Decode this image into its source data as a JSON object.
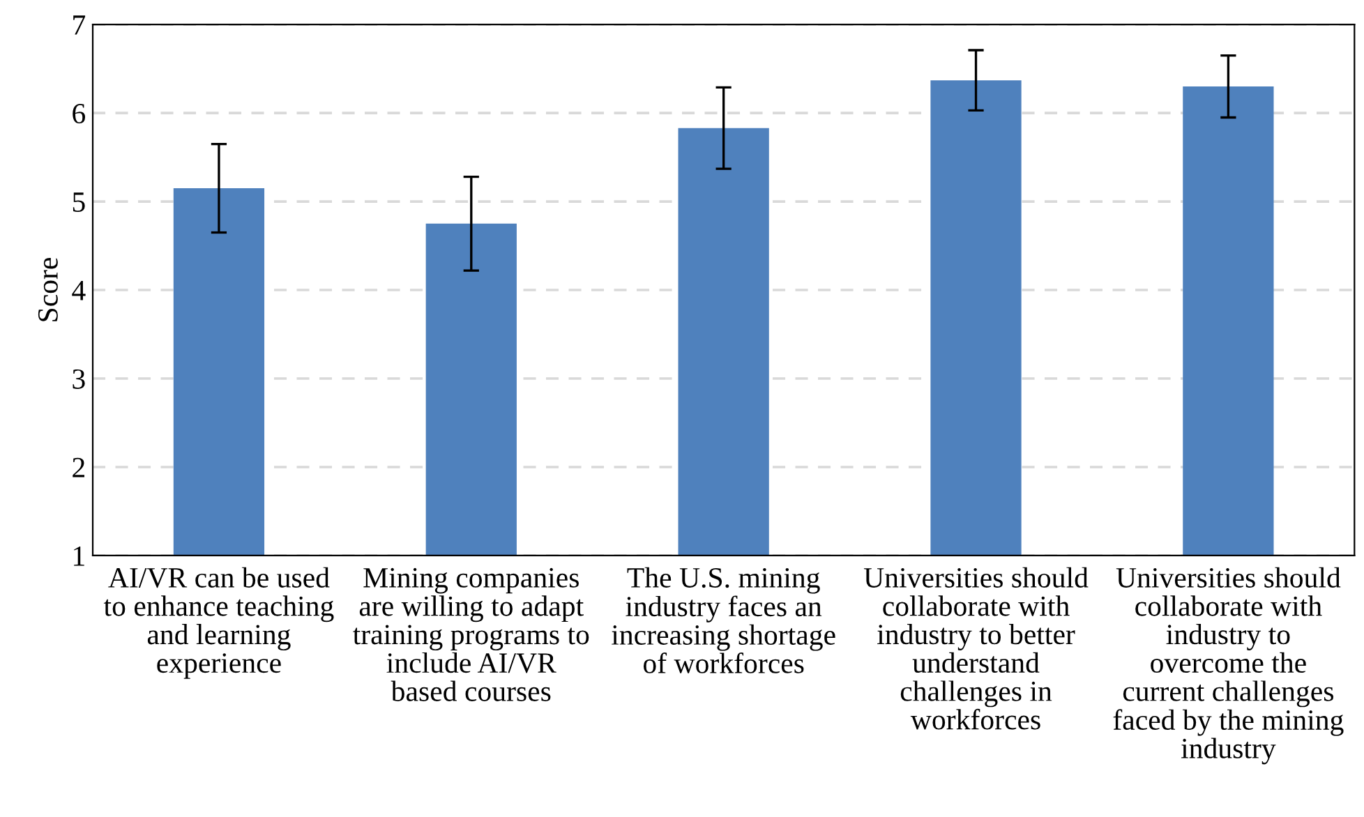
{
  "chart_data": {
    "type": "bar",
    "ylabel": "Score",
    "categories": [
      "AI/VR can be used\nto enhance teaching\nand learning\nexperience",
      "Mining companies\nare willing to adapt\ntraining programs to\ninclude AI/VR\nbased courses",
      "The U.S. mining\nindustry faces an\nincreasing shortage\nof workforces",
      "Universities should\ncollaborate with\nindustry to better\nunderstand\nchallenges in\nworkforces",
      "Universities should\ncollaborate with\nindustry to\novercome the\ncurrent challenges\nfaced by the mining\nindustry"
    ],
    "values": [
      5.15,
      4.75,
      5.83,
      6.37,
      6.3
    ],
    "errors": [
      0.5,
      0.53,
      0.46,
      0.34,
      0.35
    ],
    "color": "#4f81bd",
    "ylim": [
      1,
      7
    ],
    "yticks": [
      1,
      2,
      3,
      4,
      5,
      6,
      7
    ],
    "grid": "y"
  }
}
